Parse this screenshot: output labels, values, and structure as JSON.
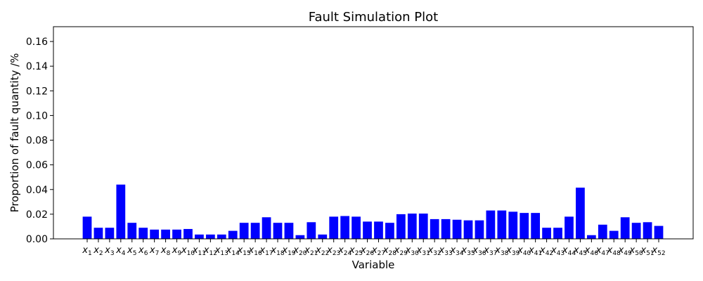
{
  "chart_data": {
    "type": "bar",
    "title": "Fault Simulation Plot",
    "xlabel": "Variable",
    "ylabel": "Proportion of fault quantity /%",
    "ylim": [
      0,
      0.172
    ],
    "yticks": [
      "0.00",
      "0.02",
      "0.04",
      "0.06",
      "0.08",
      "0.10",
      "0.12",
      "0.14",
      "0.16"
    ],
    "ytick_values": [
      0,
      0.02,
      0.04,
      0.06,
      0.08,
      0.1,
      0.12,
      0.14,
      0.16
    ],
    "grid": false,
    "bar_color": "#0000ff",
    "category_prefix": "x",
    "categories": [
      "1",
      "2",
      "3",
      "4",
      "5",
      "6",
      "7",
      "8",
      "9",
      "10",
      "11",
      "12",
      "13",
      "14",
      "15",
      "16",
      "17",
      "18",
      "19",
      "20",
      "21",
      "22",
      "23",
      "24",
      "25",
      "26",
      "27",
      "28",
      "29",
      "30",
      "31",
      "32",
      "33",
      "34",
      "35",
      "36",
      "37",
      "38",
      "39",
      "40",
      "41",
      "42",
      "43",
      "44",
      "45",
      "46",
      "47",
      "48",
      "49",
      "50",
      "51",
      "52"
    ],
    "values": [
      0.018,
      0.009,
      0.009,
      0.044,
      0.013,
      0.009,
      0.0075,
      0.0075,
      0.0075,
      0.008,
      0.0035,
      0.0035,
      0.0035,
      0.0065,
      0.013,
      0.013,
      0.0175,
      0.013,
      0.013,
      0.003,
      0.0135,
      0.0035,
      0.018,
      0.0185,
      0.018,
      0.014,
      0.014,
      0.013,
      0.02,
      0.0205,
      0.0205,
      0.016,
      0.016,
      0.0155,
      0.015,
      0.015,
      0.023,
      0.023,
      0.022,
      0.021,
      0.021,
      0.009,
      0.009,
      0.018,
      0.0415,
      0.003,
      0.0115,
      0.0065,
      0.0175,
      0.013,
      0.0135,
      0.0105
    ]
  }
}
